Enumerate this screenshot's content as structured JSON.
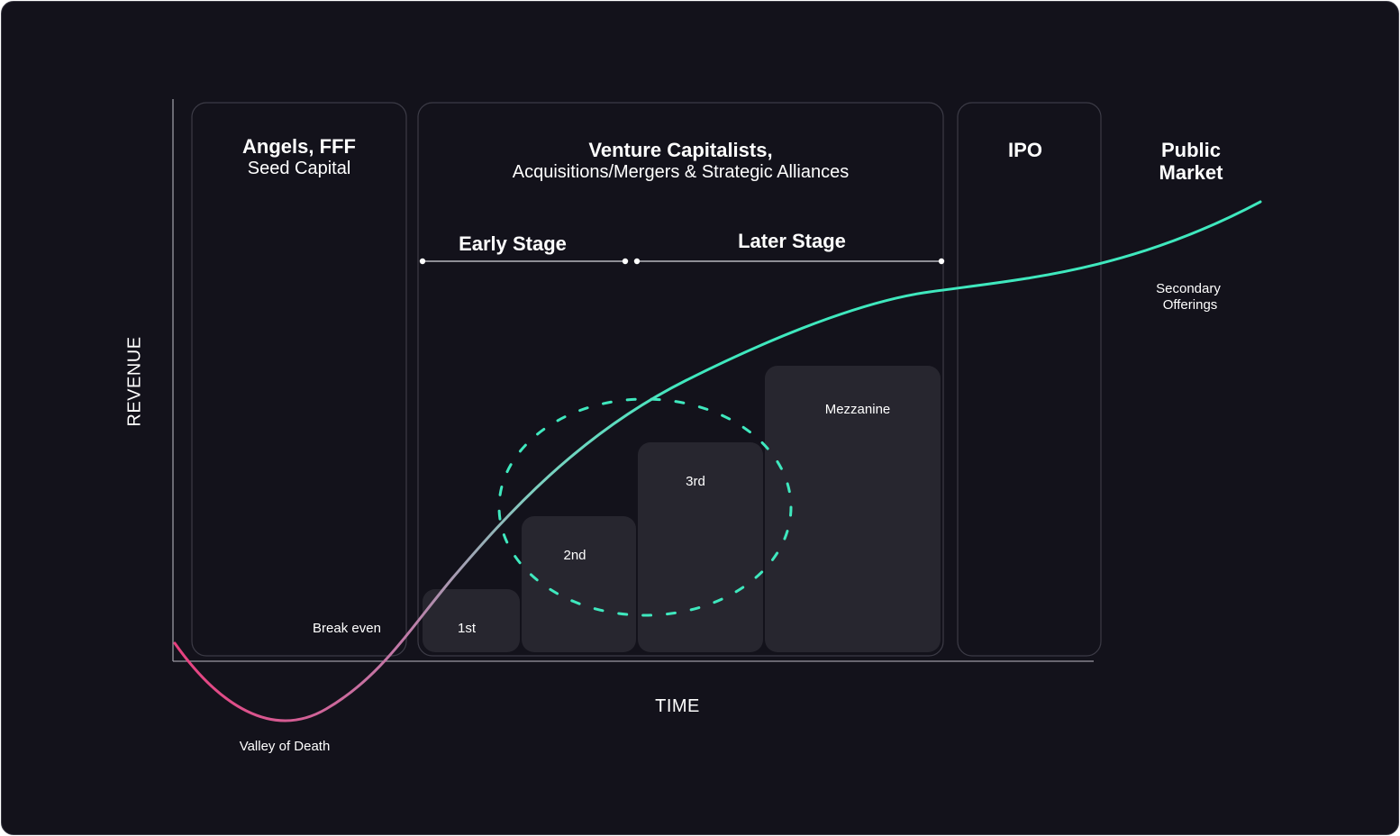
{
  "panels": {
    "angels": {
      "title": "Angels, FFF",
      "subtitle": "Seed Capital"
    },
    "vc": {
      "title": "Venture Capitalists,",
      "subtitle": "Acquisitions/Mergers & Strategic Alliances"
    },
    "ipo": {
      "title": "IPO"
    },
    "public": {
      "title_line1": "Public",
      "title_line2": "Market"
    }
  },
  "stages": {
    "early": "Early Stage",
    "later": "Later Stage"
  },
  "rounds": [
    "1st",
    "2nd",
    "3rd",
    "Mezzanine"
  ],
  "annotations": {
    "break_even": "Break even",
    "valley": "Valley of Death",
    "secondary_line1": "Secondary",
    "secondary_line2": "Offerings"
  },
  "axes": {
    "x": "TIME",
    "y": "REVENUE"
  },
  "colors": {
    "background": "#13121b",
    "panel_border": "#3c3b46",
    "round_fill": "#27262f",
    "curve_start": "#e8407f",
    "curve_end": "#3fe8be",
    "dashed_circle": "#3fe8be"
  }
}
